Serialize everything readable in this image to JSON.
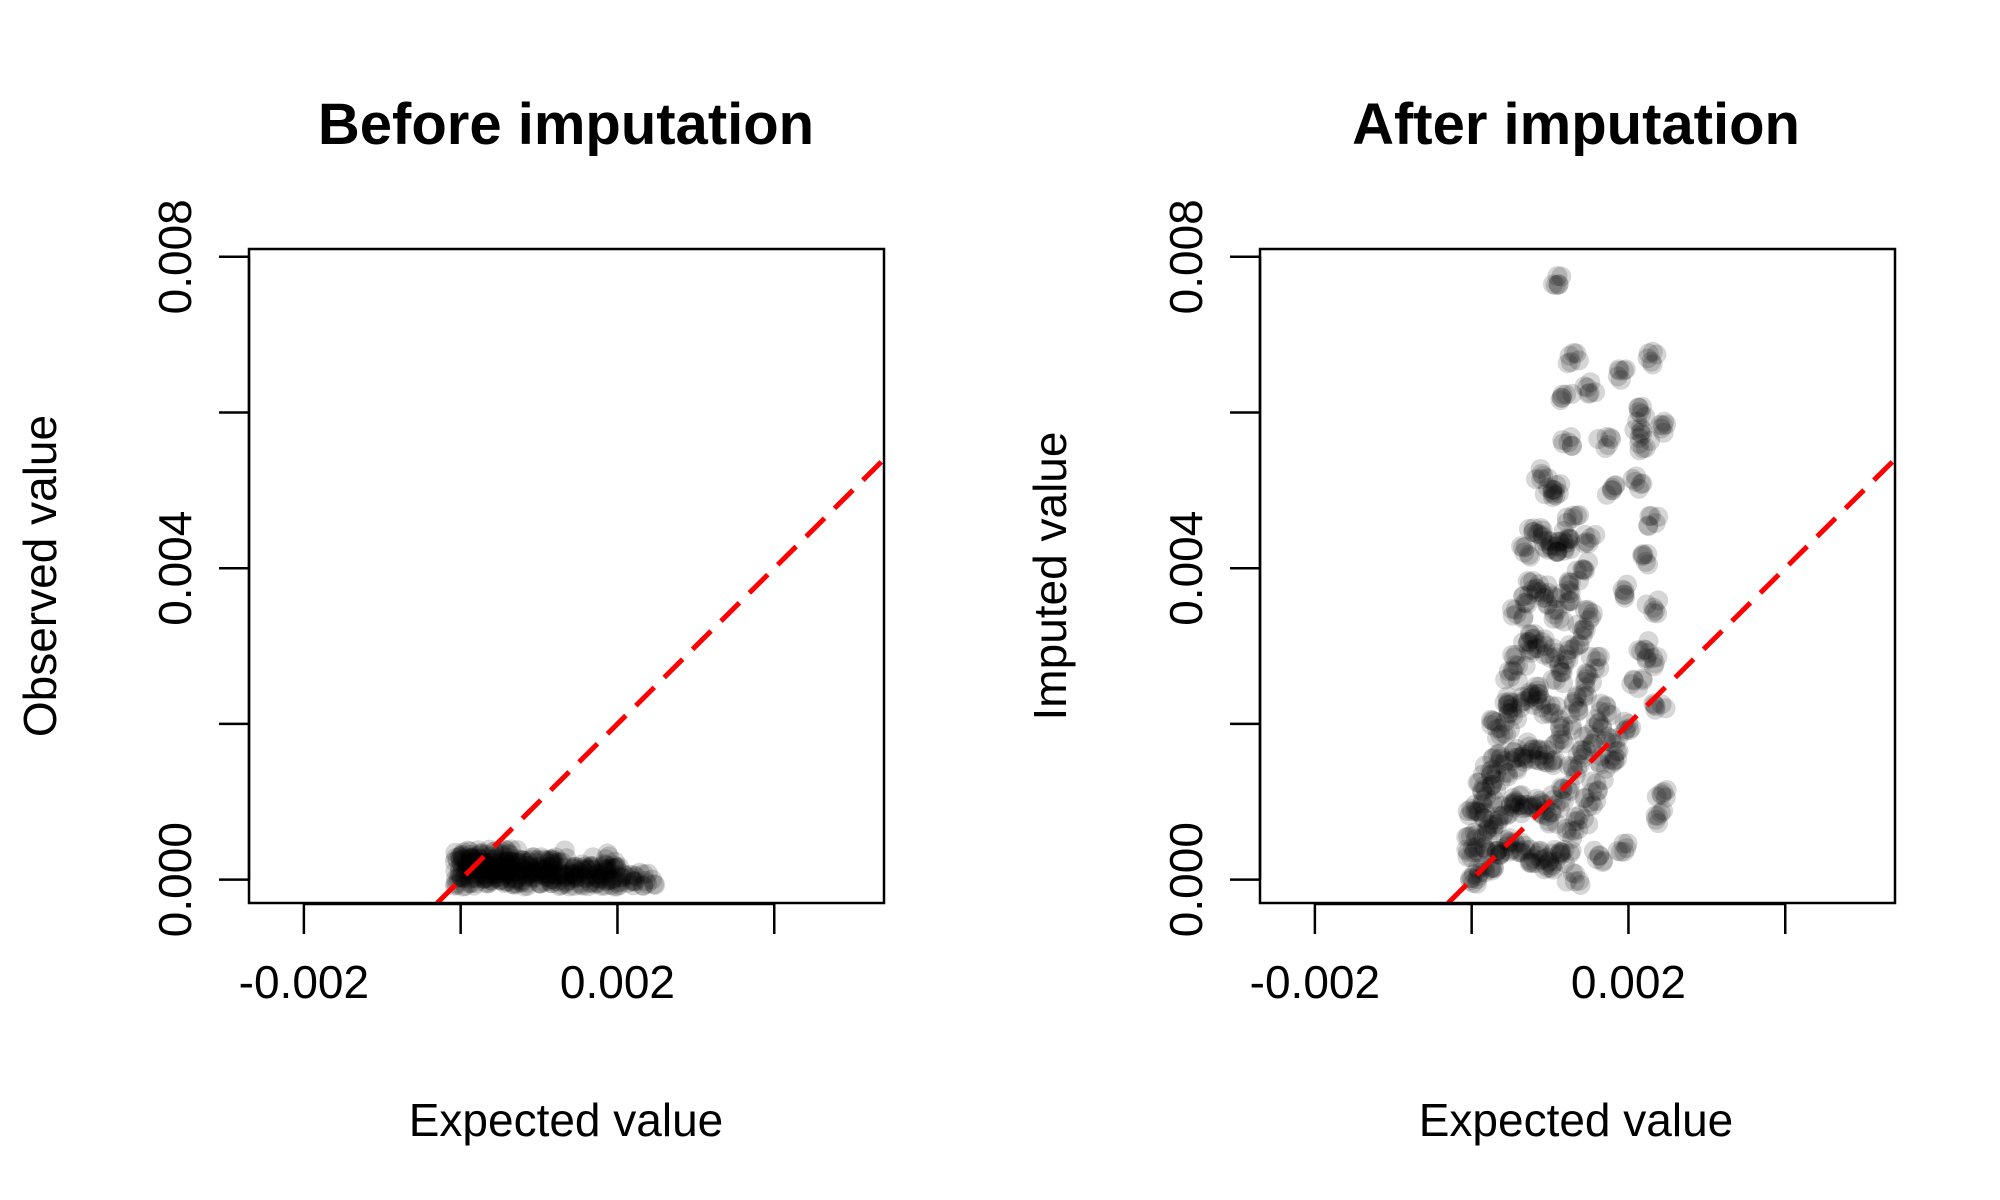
{
  "chart_data": [
    {
      "type": "scatter",
      "title": "Before imputation",
      "xlabel": "Expected value",
      "ylabel": "Observed value",
      "xlim": [
        -0.0027,
        0.0054
      ],
      "ylim": [
        -0.0003,
        0.0081
      ],
      "x_ticks": [
        -0.002,
        0,
        0.002,
        0.004
      ],
      "x_tick_labels": [
        "-0.002",
        "",
        "0.002",
        ""
      ],
      "y_ticks": [
        0,
        0.002,
        0.004,
        0.006,
        0.008
      ],
      "y_tick_labels": [
        "0.000",
        "",
        "0.004",
        "",
        "0.008"
      ],
      "grid": false,
      "point_color": "#000000",
      "reference_line": {
        "slope": 1,
        "intercept": 0,
        "color": "#ff0000",
        "style": "dashed"
      },
      "series": [
        {
          "values_description_free": true,
          "points": [
            [
              0.0,
              0.0003
            ],
            [
              0.0,
              0.0002
            ],
            [
              0.0,
              0.0001
            ],
            [
              0.0,
              0.0
            ],
            [
              0.0001,
              0.0003
            ],
            [
              0.0001,
              0.0002
            ],
            [
              0.0001,
              0.0001
            ],
            [
              0.0001,
              0.0
            ],
            [
              0.0002,
              0.0003
            ],
            [
              0.0002,
              0.0002
            ],
            [
              0.0002,
              0.0001
            ],
            [
              0.0002,
              0.0
            ],
            [
              0.0003,
              0.0003
            ],
            [
              0.0003,
              0.0002
            ],
            [
              0.0003,
              0.0001
            ],
            [
              0.0003,
              0.0
            ],
            [
              0.0004,
              0.0003
            ],
            [
              0.0004,
              0.0002
            ],
            [
              0.0004,
              0.0001
            ],
            [
              0.0004,
              0.0
            ],
            [
              0.0005,
              0.0003
            ],
            [
              0.0005,
              0.0002
            ],
            [
              0.0005,
              0.0001
            ],
            [
              0.0005,
              0.0
            ],
            [
              0.0006,
              0.0003
            ],
            [
              0.0006,
              0.0002
            ],
            [
              0.0006,
              0.0001
            ],
            [
              0.0006,
              0.0
            ],
            [
              0.0007,
              0.0003
            ],
            [
              0.0007,
              0.0002
            ],
            [
              0.0007,
              0.0001
            ],
            [
              0.0007,
              0.0
            ],
            [
              0.0008,
              0.0002
            ],
            [
              0.0008,
              0.0001
            ],
            [
              0.0008,
              0.0
            ],
            [
              0.0009,
              0.0002
            ],
            [
              0.0009,
              0.0001
            ],
            [
              0.0009,
              0.0
            ],
            [
              0.001,
              0.0002
            ],
            [
              0.001,
              0.0001
            ],
            [
              0.001,
              0.0
            ],
            [
              0.0011,
              0.0002
            ],
            [
              0.0011,
              0.0001
            ],
            [
              0.0011,
              0.0
            ],
            [
              0.0012,
              0.0002
            ],
            [
              0.0012,
              0.0001
            ],
            [
              0.0012,
              0.0
            ],
            [
              0.0013,
              0.0001
            ],
            [
              0.0013,
              0.0
            ],
            [
              0.0014,
              0.0001
            ],
            [
              0.0014,
              0.0
            ],
            [
              0.0015,
              0.0001
            ],
            [
              0.0015,
              0.0
            ],
            [
              0.0016,
              0.0001
            ],
            [
              0.0016,
              0.0
            ],
            [
              0.0017,
              0.0001
            ],
            [
              0.0017,
              0.0
            ],
            [
              0.0018,
              0.0001
            ],
            [
              0.0018,
              0.0
            ],
            [
              0.0019,
              0.0001
            ],
            [
              0.0019,
              0.0
            ],
            [
              0.002,
              0.0001
            ],
            [
              0.002,
              0.0
            ],
            [
              0.0021,
              0.0
            ],
            [
              0.0022,
              0.0
            ],
            [
              0.0023,
              0.0
            ],
            [
              0.0024,
              0.0
            ],
            [
              0.0019,
              0.00025
            ],
            [
              0.0016,
              0.0002
            ],
            [
              0.0013,
              0.0003
            ]
          ]
        }
      ]
    },
    {
      "type": "scatter",
      "title": "After imputation",
      "xlabel": "Expected value",
      "ylabel": "Imputed value",
      "xlim": [
        -0.0027,
        0.0054
      ],
      "ylim": [
        -0.0003,
        0.0081
      ],
      "x_ticks": [
        -0.002,
        0,
        0.002,
        0.004
      ],
      "x_tick_labels": [
        "-0.002",
        "",
        "0.002",
        ""
      ],
      "y_ticks": [
        0,
        0.002,
        0.004,
        0.006,
        0.008
      ],
      "y_tick_labels": [
        "0.000",
        "",
        "0.004",
        "",
        "0.008"
      ],
      "grid": false,
      "point_color": "#000000",
      "reference_line": {
        "slope": 1,
        "intercept": 0,
        "color": "#ff0000",
        "style": "dashed"
      },
      "series": [
        {
          "points": [
            [
              0.0,
              0.0
            ],
            [
              0.0,
              0.0003
            ],
            [
              0.0,
              0.0006
            ],
            [
              0.0,
              0.0009
            ],
            [
              0.0001,
              0.0001
            ],
            [
              0.0001,
              0.0004
            ],
            [
              0.0001,
              0.0008
            ],
            [
              0.0001,
              0.0012
            ],
            [
              0.0002,
              0.0002
            ],
            [
              0.0002,
              0.0006
            ],
            [
              0.0002,
              0.001
            ],
            [
              0.0002,
              0.0014
            ],
            [
              0.0003,
              0.0003
            ],
            [
              0.0003,
              0.0007
            ],
            [
              0.0003,
              0.0012
            ],
            [
              0.0003,
              0.0016
            ],
            [
              0.0003,
              0.002
            ],
            [
              0.0004,
              0.0004
            ],
            [
              0.0004,
              0.0009
            ],
            [
              0.0004,
              0.0014
            ],
            [
              0.0004,
              0.0019
            ],
            [
              0.0004,
              0.0023
            ],
            [
              0.0005,
              0.0005
            ],
            [
              0.0005,
              0.001
            ],
            [
              0.0005,
              0.0015
            ],
            [
              0.0005,
              0.0021
            ],
            [
              0.0005,
              0.0026
            ],
            [
              0.0006,
              0.0004
            ],
            [
              0.0006,
              0.001
            ],
            [
              0.0006,
              0.0016
            ],
            [
              0.0006,
              0.0022
            ],
            [
              0.0006,
              0.0028
            ],
            [
              0.0006,
              0.0034
            ],
            [
              0.0007,
              0.0003
            ],
            [
              0.0007,
              0.0009
            ],
            [
              0.0007,
              0.0016
            ],
            [
              0.0007,
              0.0023
            ],
            [
              0.0007,
              0.003
            ],
            [
              0.0007,
              0.0036
            ],
            [
              0.0007,
              0.0042
            ],
            [
              0.0008,
              0.0003
            ],
            [
              0.0008,
              0.001
            ],
            [
              0.0008,
              0.0017
            ],
            [
              0.0008,
              0.0024
            ],
            [
              0.0008,
              0.0031
            ],
            [
              0.0008,
              0.0038
            ],
            [
              0.0008,
              0.0045
            ],
            [
              0.0009,
              0.0002
            ],
            [
              0.0009,
              0.0009
            ],
            [
              0.0009,
              0.0016
            ],
            [
              0.0009,
              0.0023
            ],
            [
              0.0009,
              0.003
            ],
            [
              0.0009,
              0.0037
            ],
            [
              0.0009,
              0.0044
            ],
            [
              0.0009,
              0.0052
            ],
            [
              0.001,
              0.0002
            ],
            [
              0.001,
              0.0008
            ],
            [
              0.001,
              0.0015
            ],
            [
              0.001,
              0.0022
            ],
            [
              0.001,
              0.0029
            ],
            [
              0.001,
              0.0036
            ],
            [
              0.001,
              0.0043
            ],
            [
              0.001,
              0.005
            ],
            [
              0.0011,
              0.0003
            ],
            [
              0.0011,
              0.001
            ],
            [
              0.0011,
              0.0018
            ],
            [
              0.0011,
              0.0026
            ],
            [
              0.0011,
              0.0034
            ],
            [
              0.0011,
              0.0042
            ],
            [
              0.0011,
              0.005
            ],
            [
              0.0012,
              0.0004
            ],
            [
              0.0012,
              0.0012
            ],
            [
              0.0012,
              0.002
            ],
            [
              0.0012,
              0.0028
            ],
            [
              0.0012,
              0.0036
            ],
            [
              0.0012,
              0.0044
            ],
            [
              0.0012,
              0.0056
            ],
            [
              0.0013,
              0.0006
            ],
            [
              0.0013,
              0.0014
            ],
            [
              0.0013,
              0.0022
            ],
            [
              0.0013,
              0.003
            ],
            [
              0.0013,
              0.0038
            ],
            [
              0.0013,
              0.0046
            ],
            [
              0.0014,
              0.0008
            ],
            [
              0.0014,
              0.0016
            ],
            [
              0.0014,
              0.0024
            ],
            [
              0.0014,
              0.0032
            ],
            [
              0.0014,
              0.004
            ],
            [
              0.0015,
              0.001
            ],
            [
              0.0015,
              0.0018
            ],
            [
              0.0015,
              0.0026
            ],
            [
              0.0015,
              0.0034
            ],
            [
              0.0016,
              0.0012
            ],
            [
              0.0016,
              0.002
            ],
            [
              0.0016,
              0.0028
            ],
            [
              0.0017,
              0.0015
            ],
            [
              0.0017,
              0.0022
            ],
            [
              0.0018,
              0.0018
            ],
            [
              0.0019,
              0.0016
            ],
            [
              0.002,
              0.002
            ],
            [
              0.0021,
              0.0025
            ],
            [
              0.0022,
              0.003
            ],
            [
              0.0023,
              0.0028
            ],
            [
              0.0024,
              0.0022
            ],
            [
              0.0024,
              0.0011
            ],
            [
              0.0024,
              0.0008
            ],
            [
              0.0023,
              0.0035
            ],
            [
              0.0022,
              0.0041
            ],
            [
              0.0023,
              0.0046
            ],
            [
              0.0021,
              0.0051
            ],
            [
              0.0022,
              0.0056
            ],
            [
              0.0021,
              0.0058
            ],
            [
              0.0024,
              0.0058
            ],
            [
              0.0022,
              0.006
            ],
            [
              0.0023,
              0.0067
            ],
            [
              0.0019,
              0.0065
            ],
            [
              0.0013,
              0.0067
            ],
            [
              0.0012,
              0.0062
            ],
            [
              0.0015,
              0.0063
            ],
            [
              0.0011,
              0.0077
            ],
            [
              0.0017,
              0.0056
            ],
            [
              0.0018,
              0.005
            ],
            [
              0.0016,
              0.0003
            ],
            [
              0.0019,
              0.0004
            ],
            [
              0.0013,
              0.0
            ],
            [
              0.0012,
              0.0043
            ],
            [
              0.0015,
              0.0044
            ],
            [
              0.002,
              0.0037
            ]
          ]
        }
      ]
    }
  ]
}
